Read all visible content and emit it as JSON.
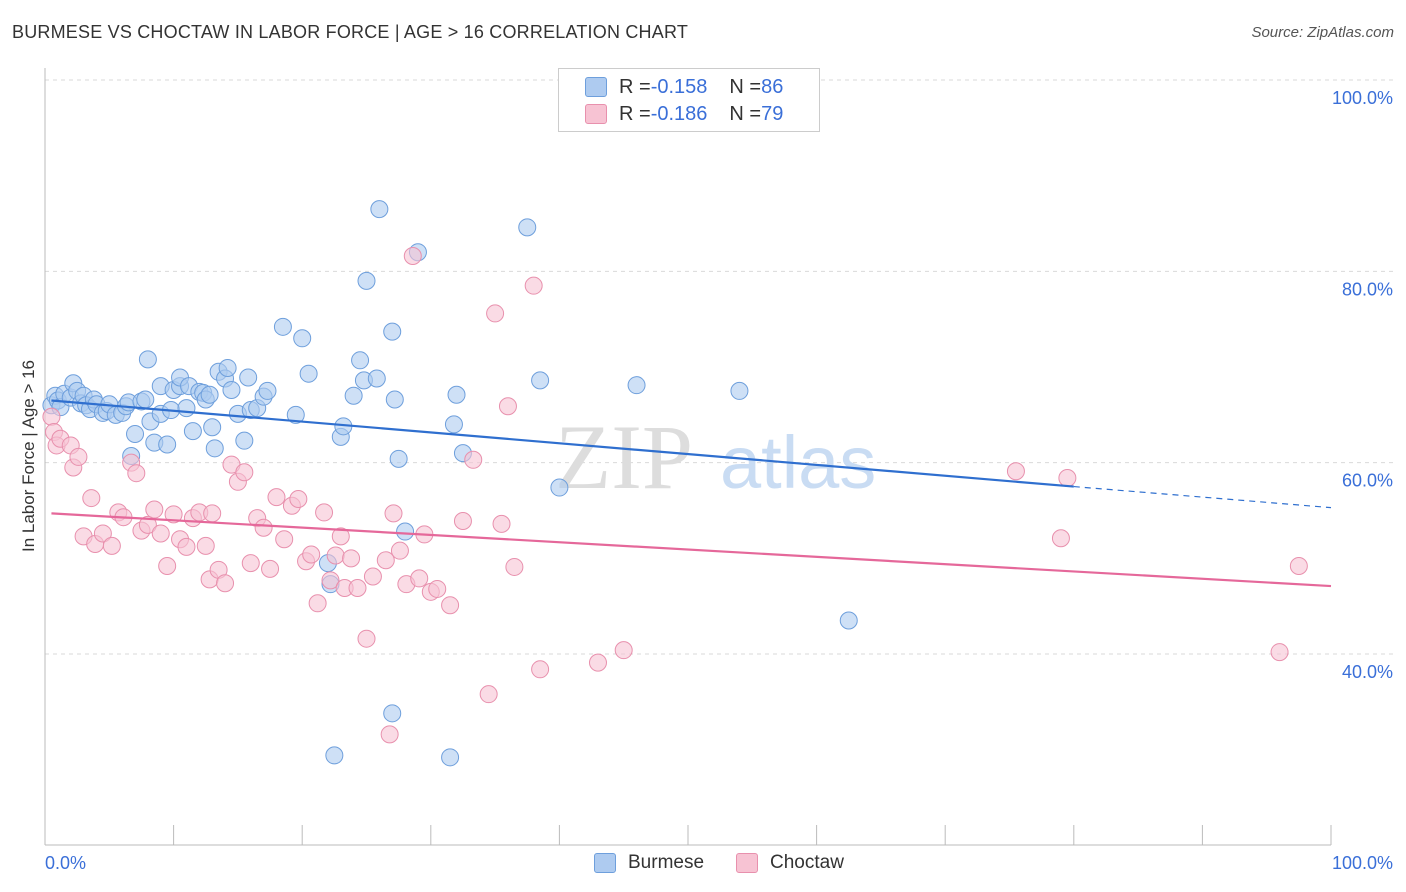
{
  "title": "BURMESE VS CHOCTAW IN LABOR FORCE | AGE > 16 CORRELATION CHART",
  "source": "Source: ZipAtlas.com",
  "watermark": {
    "zip": "ZIP",
    "atlas": "atlas"
  },
  "legend": {
    "rows": [
      {
        "r_label": "R = ",
        "r_value": "-0.158",
        "n_label": "N = ",
        "n_value": "86"
      },
      {
        "r_label": "R = ",
        "r_value": "-0.186",
        "n_label": "N = ",
        "n_value": "79"
      }
    ]
  },
  "bottom_legend": [
    "Burmese",
    "Choctaw"
  ],
  "colors": {
    "burmese_fill": "#aecbf0",
    "burmese_stroke": "#6e9fdc",
    "burmese_line": "#2f6fcf",
    "choctaw_fill": "#f7c3d3",
    "choctaw_stroke": "#e890ad",
    "choctaw_line": "#e5689a",
    "axis_label": "#3a6fd8",
    "grid": "#d9d9d9"
  },
  "chart_data": {
    "type": "scatter",
    "title": "BURMESE VS CHOCTAW IN LABOR FORCE | AGE > 16 CORRELATION CHART",
    "ylabel": "In Labor Force | Age > 16",
    "xlabel": "",
    "xlim": [
      0,
      100
    ],
    "ylim": [
      20,
      105
    ],
    "x_tick_labels": [
      "0.0%",
      "100.0%"
    ],
    "y_ticks": [
      40,
      60,
      80,
      100
    ],
    "y_tick_labels": [
      "40.0%",
      "60.0%",
      "80.0%",
      "100.0%"
    ],
    "grid": true,
    "series": [
      {
        "name": "Burmese",
        "trend": {
          "x": [
            0.5,
            80,
            100
          ],
          "y": [
            66.5,
            57.5,
            55.3
          ],
          "solid_until": 80
        },
        "points": [
          [
            0.5,
            66.0
          ],
          [
            0.8,
            67.0
          ],
          [
            1.0,
            66.5
          ],
          [
            1.2,
            65.8
          ],
          [
            1.5,
            67.2
          ],
          [
            2.0,
            66.8
          ],
          [
            2.2,
            68.3
          ],
          [
            2.5,
            67.5
          ],
          [
            2.8,
            66.2
          ],
          [
            3.0,
            67.0
          ],
          [
            3.2,
            66.0
          ],
          [
            3.5,
            65.6
          ],
          [
            3.8,
            66.6
          ],
          [
            4.0,
            66.1
          ],
          [
            4.5,
            65.2
          ],
          [
            4.8,
            65.4
          ],
          [
            5.0,
            66.1
          ],
          [
            5.5,
            65.0
          ],
          [
            6.0,
            65.2
          ],
          [
            6.3,
            65.9
          ],
          [
            6.5,
            66.3
          ],
          [
            6.7,
            60.7
          ],
          [
            7.0,
            63.0
          ],
          [
            7.5,
            66.4
          ],
          [
            7.8,
            66.6
          ],
          [
            8.0,
            70.8
          ],
          [
            8.2,
            64.3
          ],
          [
            8.5,
            62.1
          ],
          [
            9.0,
            65.1
          ],
          [
            9.0,
            68.0
          ],
          [
            9.5,
            61.9
          ],
          [
            9.8,
            65.5
          ],
          [
            10.0,
            67.6
          ],
          [
            10.5,
            68.0
          ],
          [
            10.5,
            68.9
          ],
          [
            11.0,
            65.7
          ],
          [
            11.2,
            68.0
          ],
          [
            11.5,
            63.3
          ],
          [
            12.0,
            67.4
          ],
          [
            12.3,
            67.3
          ],
          [
            12.5,
            66.6
          ],
          [
            12.8,
            67.1
          ],
          [
            13.0,
            63.7
          ],
          [
            13.2,
            61.5
          ],
          [
            13.5,
            69.5
          ],
          [
            14.0,
            68.8
          ],
          [
            14.2,
            69.9
          ],
          [
            14.5,
            67.6
          ],
          [
            15.0,
            65.1
          ],
          [
            15.5,
            62.3
          ],
          [
            15.8,
            68.9
          ],
          [
            16.0,
            65.5
          ],
          [
            16.5,
            65.7
          ],
          [
            17.0,
            66.9
          ],
          [
            17.3,
            67.5
          ],
          [
            18.5,
            74.2
          ],
          [
            19.5,
            65.0
          ],
          [
            20.0,
            73.0
          ],
          [
            20.5,
            69.3
          ],
          [
            22.0,
            49.5
          ],
          [
            22.2,
            47.3
          ],
          [
            23.0,
            62.7
          ],
          [
            23.2,
            63.8
          ],
          [
            24.0,
            67.0
          ],
          [
            24.5,
            70.7
          ],
          [
            24.8,
            68.6
          ],
          [
            25.0,
            79.0
          ],
          [
            25.8,
            68.8
          ],
          [
            26.0,
            86.5
          ],
          [
            27.0,
            73.7
          ],
          [
            27.2,
            66.6
          ],
          [
            27.5,
            60.4
          ],
          [
            27.0,
            33.8
          ],
          [
            22.5,
            29.4
          ],
          [
            28.0,
            52.8
          ],
          [
            29.0,
            82.0
          ],
          [
            31.5,
            29.2
          ],
          [
            31.8,
            64.0
          ],
          [
            32.0,
            67.1
          ],
          [
            37.5,
            84.6
          ],
          [
            38.5,
            68.6
          ],
          [
            40.0,
            57.4
          ],
          [
            46.0,
            68.1
          ],
          [
            54.0,
            67.5
          ],
          [
            62.5,
            43.5
          ],
          [
            32.5,
            61.0
          ]
        ]
      },
      {
        "name": "Choctaw",
        "trend": {
          "x": [
            0.5,
            100
          ],
          "y": [
            54.7,
            47.1
          ]
        },
        "points": [
          [
            0.5,
            64.8
          ],
          [
            0.7,
            63.2
          ],
          [
            0.9,
            61.8
          ],
          [
            1.2,
            62.5
          ],
          [
            2.0,
            61.8
          ],
          [
            2.2,
            59.5
          ],
          [
            2.6,
            60.6
          ],
          [
            3.0,
            52.3
          ],
          [
            3.6,
            56.3
          ],
          [
            3.9,
            51.5
          ],
          [
            4.5,
            52.6
          ],
          [
            5.2,
            51.3
          ],
          [
            5.7,
            54.8
          ],
          [
            6.1,
            54.3
          ],
          [
            6.7,
            60.0
          ],
          [
            7.1,
            58.9
          ],
          [
            7.5,
            52.9
          ],
          [
            8.0,
            53.5
          ],
          [
            8.5,
            55.1
          ],
          [
            9.0,
            52.6
          ],
          [
            9.5,
            49.2
          ],
          [
            10.0,
            54.6
          ],
          [
            10.5,
            52.0
          ],
          [
            11.0,
            51.2
          ],
          [
            11.5,
            54.2
          ],
          [
            12.0,
            54.8
          ],
          [
            12.5,
            51.3
          ],
          [
            12.8,
            47.8
          ],
          [
            13.0,
            54.7
          ],
          [
            13.5,
            48.8
          ],
          [
            14.0,
            47.4
          ],
          [
            14.5,
            59.8
          ],
          [
            15.0,
            58.0
          ],
          [
            15.5,
            59.0
          ],
          [
            16.0,
            49.5
          ],
          [
            16.5,
            54.2
          ],
          [
            17.0,
            53.2
          ],
          [
            17.5,
            48.9
          ],
          [
            18.0,
            56.4
          ],
          [
            18.6,
            52.0
          ],
          [
            19.2,
            55.5
          ],
          [
            19.7,
            56.2
          ],
          [
            20.3,
            49.7
          ],
          [
            20.7,
            50.4
          ],
          [
            21.2,
            45.3
          ],
          [
            21.7,
            54.8
          ],
          [
            22.2,
            47.7
          ],
          [
            22.6,
            50.3
          ],
          [
            23.0,
            52.3
          ],
          [
            23.3,
            46.9
          ],
          [
            23.8,
            50.0
          ],
          [
            24.3,
            46.9
          ],
          [
            25.0,
            41.6
          ],
          [
            25.5,
            48.1
          ],
          [
            26.5,
            49.8
          ],
          [
            26.8,
            31.6
          ],
          [
            27.1,
            54.7
          ],
          [
            27.6,
            50.8
          ],
          [
            28.1,
            47.3
          ],
          [
            28.6,
            81.6
          ],
          [
            29.1,
            47.9
          ],
          [
            29.5,
            52.5
          ],
          [
            30.0,
            46.5
          ],
          [
            30.5,
            46.8
          ],
          [
            31.5,
            45.1
          ],
          [
            32.5,
            53.9
          ],
          [
            33.3,
            60.3
          ],
          [
            34.5,
            35.8
          ],
          [
            35.0,
            75.6
          ],
          [
            35.5,
            53.6
          ],
          [
            36.0,
            65.9
          ],
          [
            36.5,
            49.1
          ],
          [
            38.0,
            78.5
          ],
          [
            38.5,
            38.4
          ],
          [
            43.0,
            39.1
          ],
          [
            45.0,
            40.4
          ],
          [
            75.5,
            59.1
          ],
          [
            79.5,
            58.4
          ],
          [
            79.0,
            52.1
          ]
        ]
      }
    ],
    "extra_points": {
      "Choctaw": [
        [
          97.5,
          49.2
        ],
        [
          96.0,
          40.2
        ]
      ]
    }
  }
}
